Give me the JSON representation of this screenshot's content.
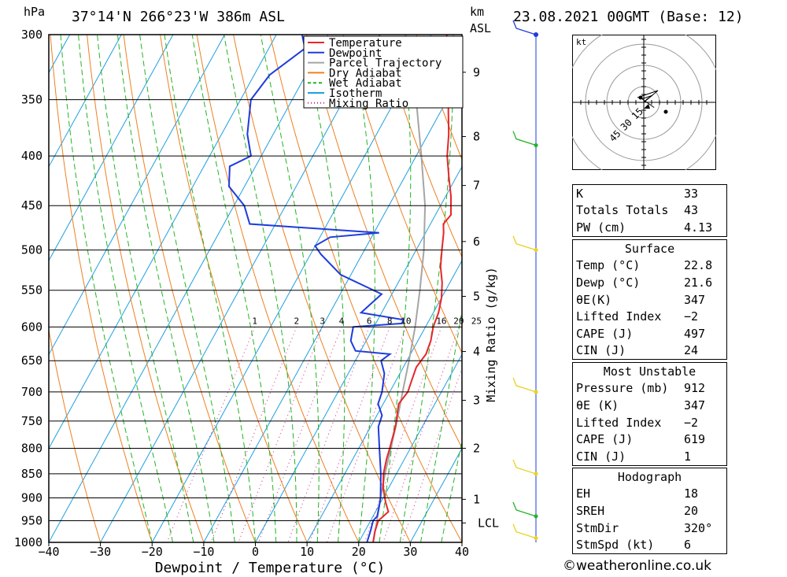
{
  "header": {
    "location": "37°14'N 266°23'W 386m ASL",
    "datetime": "23.08.2021 00GMT (Base: 12)",
    "pressure_unit": "hPa",
    "km_unit": "km",
    "asl_unit": "ASL"
  },
  "chart_data": {
    "type": "line",
    "xlabel": "Dewpoint / Temperature (°C)",
    "ylabel": "hPa",
    "mixing_ratio_label": "Mixing Ratio (g/kg)",
    "xlim": [
      -40,
      40
    ],
    "ylim": [
      1000,
      300
    ],
    "x_ticks": [
      "−40",
      "−30",
      "−20",
      "−10",
      "0",
      "10",
      "20",
      "30",
      "40"
    ],
    "pressure_ticks": [
      "300",
      "350",
      "400",
      "450",
      "500",
      "550",
      "600",
      "650",
      "700",
      "750",
      "800",
      "850",
      "900",
      "950",
      "1000"
    ],
    "km_ticks": [
      {
        "label": "9",
        "p": 328
      },
      {
        "label": "8",
        "p": 382
      },
      {
        "label": "7",
        "p": 429
      },
      {
        "label": "6",
        "p": 490
      },
      {
        "label": "5",
        "p": 558
      },
      {
        "label": "4",
        "p": 636
      },
      {
        "label": "3",
        "p": 714
      },
      {
        "label": "2",
        "p": 800
      },
      {
        "label": "1",
        "p": 903
      },
      {
        "label": "LCL",
        "p": 955
      }
    ],
    "mixing_ratio_ticks": [
      "1",
      "2",
      "3",
      "4",
      "6",
      "8",
      "10",
      "16",
      "20",
      "25"
    ],
    "legend": [
      "Temperature",
      "Dewpoint",
      "Parcel Trajectory",
      "Dry Adiabat",
      "Wet Adiabat",
      "Isotherm",
      "Mixing Ratio"
    ],
    "colors": {
      "temperature": "#e8262b",
      "dewpoint": "#1e3cdc",
      "parcel": "#a5a5a5",
      "dry_adiabat": "#ee8020",
      "wet_adiabat": "#22b422",
      "isotherm": "#1e9fe0",
      "mixing_ratio": "#d0208c"
    },
    "series": [
      {
        "name": "Temperature",
        "points": [
          [
            1000,
            22.8
          ],
          [
            975,
            22
          ],
          [
            950,
            21.5
          ],
          [
            930,
            22.5
          ],
          [
            910,
            21
          ],
          [
            880,
            19
          ],
          [
            850,
            17.5
          ],
          [
            820,
            16.5
          ],
          [
            800,
            16
          ],
          [
            760,
            14.8
          ],
          [
            720,
            13
          ],
          [
            700,
            13.5
          ],
          [
            680,
            13
          ],
          [
            660,
            12.5
          ],
          [
            640,
            13
          ],
          [
            620,
            12.5
          ],
          [
            600,
            11.5
          ],
          [
            580,
            11
          ],
          [
            560,
            10
          ],
          [
            540,
            8.5
          ],
          [
            520,
            6.5
          ],
          [
            500,
            5
          ],
          [
            480,
            3.5
          ],
          [
            470,
            2.5
          ],
          [
            460,
            3
          ],
          [
            440,
            1
          ],
          [
            420,
            -1.5
          ],
          [
            400,
            -4
          ],
          [
            380,
            -6
          ],
          [
            360,
            -8.5
          ],
          [
            340,
            -11
          ],
          [
            320,
            -14
          ],
          [
            300,
            -17
          ]
        ]
      },
      {
        "name": "Dewpoint",
        "points": [
          [
            1000,
            21.6
          ],
          [
            970,
            21
          ],
          [
            950,
            20.5
          ],
          [
            940,
            20.8
          ],
          [
            920,
            20.2
          ],
          [
            900,
            19.5
          ],
          [
            850,
            17
          ],
          [
            800,
            14
          ],
          [
            760,
            11.5
          ],
          [
            740,
            11
          ],
          [
            720,
            9
          ],
          [
            700,
            8.5
          ],
          [
            670,
            7
          ],
          [
            650,
            5
          ],
          [
            640,
            6
          ],
          [
            635,
            -1
          ],
          [
            620,
            -3
          ],
          [
            600,
            -4
          ],
          [
            595,
            5
          ],
          [
            590,
            5
          ],
          [
            580,
            -4
          ],
          [
            555,
            -2
          ],
          [
            530,
            -12
          ],
          [
            505,
            -18
          ],
          [
            495,
            -20
          ],
          [
            485,
            -18
          ],
          [
            480,
            -9
          ],
          [
            470,
            -35
          ],
          [
            450,
            -38
          ],
          [
            430,
            -43
          ],
          [
            410,
            -45
          ],
          [
            400,
            -42
          ],
          [
            380,
            -45
          ],
          [
            350,
            -48
          ],
          [
            330,
            -47
          ],
          [
            310,
            -43
          ],
          [
            300,
            -45
          ]
        ]
      },
      {
        "name": "Parcel Trajectory",
        "points": [
          [
            1000,
            22.8
          ],
          [
            955,
            21.4
          ],
          [
            900,
            19.5
          ],
          [
            850,
            17.8
          ],
          [
            800,
            16.2
          ],
          [
            750,
            14.5
          ],
          [
            700,
            12.5
          ],
          [
            650,
            10.4
          ],
          [
            600,
            8
          ],
          [
            550,
            5
          ],
          [
            500,
            1.5
          ],
          [
            450,
            -3
          ],
          [
            400,
            -9
          ],
          [
            350,
            -16
          ],
          [
            300,
            -25
          ]
        ]
      }
    ],
    "wind_barbs_p": [
      300,
      390,
      500,
      700,
      850,
      940,
      990
    ],
    "hodograph": {
      "unit": "kt",
      "ring_labels": [
        "15",
        "30",
        "45"
      ],
      "points": [
        [
          0,
          0
        ],
        [
          2,
          -2
        ],
        [
          5,
          -4
        ],
        [
          -1,
          -2
        ],
        [
          6,
          3
        ]
      ]
    }
  },
  "indices": {
    "rows": [
      {
        "k": "K",
        "v": "33"
      },
      {
        "k": "Totals Totals",
        "v": "43"
      },
      {
        "k": "PW (cm)",
        "v": "4.13"
      }
    ]
  },
  "surface": {
    "title": "Surface",
    "rows": [
      {
        "k": "Temp (°C)",
        "v": "22.8"
      },
      {
        "k": "Dewp (°C)",
        "v": "21.6"
      },
      {
        "k": "θE(K)",
        "v": "347"
      },
      {
        "k": "Lifted Index",
        "v": "−2"
      },
      {
        "k": "CAPE (J)",
        "v": "497"
      },
      {
        "k": "CIN (J)",
        "v": "24"
      }
    ]
  },
  "most_unstable": {
    "title": "Most Unstable",
    "rows": [
      {
        "k": "Pressure (mb)",
        "v": "912"
      },
      {
        "k": "θE (K)",
        "v": "347"
      },
      {
        "k": "Lifted Index",
        "v": "−2"
      },
      {
        "k": "CAPE (J)",
        "v": "619"
      },
      {
        "k": "CIN (J)",
        "v": "1"
      }
    ]
  },
  "hodograph_table": {
    "title": "Hodograph",
    "rows": [
      {
        "k": "EH",
        "v": "18"
      },
      {
        "k": "SREH",
        "v": "20"
      },
      {
        "k": "StmDir",
        "v": "320°"
      },
      {
        "k": "StmSpd (kt)",
        "v": "6"
      }
    ]
  },
  "footer": {
    "copyright": "©weatheronline.co.uk"
  }
}
